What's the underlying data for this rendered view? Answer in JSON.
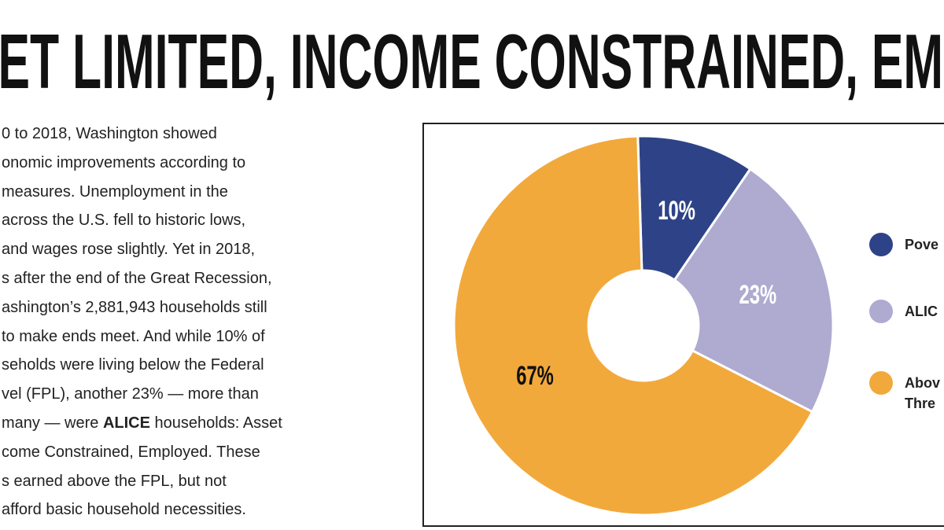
{
  "header": {
    "title": "ET LIMITED, INCOME CONSTRAINED, EMPLO"
  },
  "body": {
    "lines": [
      [
        "0 to 2018, Washington showed"
      ],
      [
        "onomic improvements according to"
      ],
      [
        "measures. Unemployment in the"
      ],
      [
        "across the U.S. fell to historic lows,"
      ],
      [
        "and wages rose slightly. Yet in 2018,"
      ],
      [
        "s after the end of the Great Recession,"
      ],
      [
        "ashington’s 2,881,943 households still"
      ],
      [
        "to make ends meet. And while 10% of"
      ],
      [
        "seholds were living below the Federal"
      ],
      [
        "vel (FPL), another 23% — more than"
      ],
      [
        "many — were ",
        "ALICE",
        " households: Asset"
      ],
      [
        "come Constrained, Employed. These"
      ],
      [
        "s earned above the FPL, but not"
      ],
      [
        "afford basic household necessities."
      ]
    ]
  },
  "chart_data": {
    "type": "donut",
    "categories": [
      "Pove",
      "ALIC",
      "Abov Thre"
    ],
    "values": [
      10,
      23,
      67
    ],
    "value_labels": [
      "10%",
      "23%",
      "67%"
    ],
    "colors": [
      "#2e4387",
      "#aeaad0",
      "#f2a93b"
    ]
  }
}
